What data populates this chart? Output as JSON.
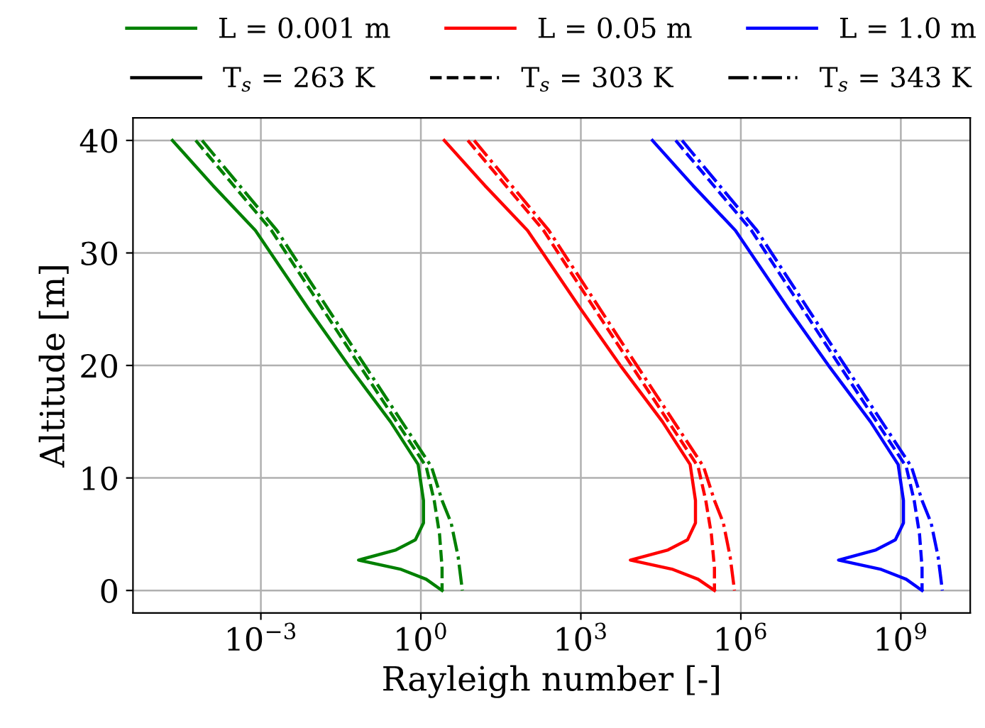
{
  "chart_data": {
    "type": "line",
    "xlabel": "Rayleigh number [-]",
    "ylabel": "Altitude [m]",
    "log": "x",
    "xlim": [
      4e-06,
      20000000000.0
    ],
    "xticks": [
      {
        "value": 0.001,
        "label": "10$^{−3}$"
      },
      {
        "value": 1,
        "label": "10$^{0}$"
      },
      {
        "value": 1000,
        "label": "10$^{3}$"
      },
      {
        "value": 1000000,
        "label": "10$^{6}$"
      },
      {
        "value": 1000000000,
        "label": "10$^{9}$"
      }
    ],
    "ylim": [
      -2,
      42
    ],
    "yticks": [
      0,
      10,
      20,
      30,
      40
    ],
    "grid": true,
    "legend": "top",
    "annotations": [
      "T$_{s}$ = 263 K",
      "T$_{s}$ = 303 K",
      "T$_{s}$ = 343 K"
    ],
    "series": [
      {
        "name": "L = 0.001 m",
        "color": "#008000",
        "line_style": "solid",
        "x": [
          2.2e-05,
          0.000126,
          0.00079,
          0.0079,
          0.044,
          0.27,
          0.89,
          1.12,
          1.12,
          0.79,
          0.34,
          0.068,
          0.41,
          1.26,
          2.5
        ],
        "values": [
          40,
          36,
          32,
          25,
          20,
          15,
          11.2,
          8,
          6,
          4.5,
          3.6,
          2.7,
          1.9,
          1,
          0
        ]
      },
      {
        "color": "#008000",
        "line_style": "dashed",
        "x": [
          6e-05,
          0.00158,
          0.071,
          1.26,
          1.78,
          2.24,
          2.5,
          2.5
        ],
        "values": [
          40,
          32,
          20,
          11,
          8,
          5,
          2,
          0
        ]
      },
      {
        "color": "#008000",
        "line_style": "dashdot",
        "x": [
          7.9e-05,
          0.002,
          0.089,
          1.58,
          2.5,
          3.7,
          5.0,
          6.0
        ],
        "values": [
          40,
          32,
          20,
          11,
          8,
          6,
          3,
          0
        ]
      },
      {
        "name": "L = 0.05 m",
        "color": "#ff0000",
        "line_style": "solid",
        "x": [
          2.75,
          15.8,
          100,
          1000,
          5500,
          34000.0,
          112000.0,
          141000.0,
          141000.0,
          100000.0,
          43000.0,
          8500.0,
          51000.0,
          158000.0,
          320000.0
        ],
        "values": [
          40,
          36,
          32,
          25,
          20,
          15,
          11.2,
          8,
          6,
          4.5,
          3.6,
          2.7,
          1.9,
          1,
          0
        ]
      },
      {
        "color": "#ff0000",
        "line_style": "dashed",
        "x": [
          7.6,
          200,
          8900.0,
          158000.0,
          220000.0,
          280000.0,
          320000.0,
          320000.0
        ],
        "values": [
          40,
          32,
          20,
          11,
          8,
          5,
          2,
          0
        ]
      },
      {
        "color": "#ff0000",
        "line_style": "dashdot",
        "x": [
          10,
          251,
          11200.0,
          200000.0,
          320000.0,
          470000.0,
          630000.0,
          760000.0
        ],
        "values": [
          40,
          32,
          20,
          11,
          8,
          6,
          3,
          0
        ]
      },
      {
        "name": "L = 1.0 m",
        "color": "#0000ff",
        "line_style": "solid",
        "x": [
          22000.0,
          126000.0,
          790000.0,
          7900000.0,
          44000000.0,
          270000000.0,
          890000000.0,
          1120000000.0,
          1120000000.0,
          790000000.0,
          340000000.0,
          68000000.0,
          410000000.0,
          1260000000.0,
          2500000000.0
        ],
        "values": [
          40,
          36,
          32,
          25,
          20,
          15,
          11.2,
          8,
          6,
          4.5,
          3.6,
          2.7,
          1.9,
          1,
          0
        ]
      },
      {
        "color": "#0000ff",
        "line_style": "dashed",
        "x": [
          60000.0,
          1580000.0,
          71000000.0,
          1260000000.0,
          1780000000.0,
          2240000000.0,
          2500000000.0,
          2500000000.0
        ],
        "values": [
          40,
          32,
          20,
          11,
          8,
          5,
          2,
          0
        ]
      },
      {
        "color": "#0000ff",
        "line_style": "dashdot",
        "x": [
          79000.0,
          2000000.0,
          89000000.0,
          1580000000.0,
          2500000000.0,
          3700000000.0,
          5000000000.0,
          6000000000.0
        ],
        "values": [
          40,
          32,
          20,
          11,
          8,
          6,
          3,
          0
        ]
      }
    ]
  }
}
